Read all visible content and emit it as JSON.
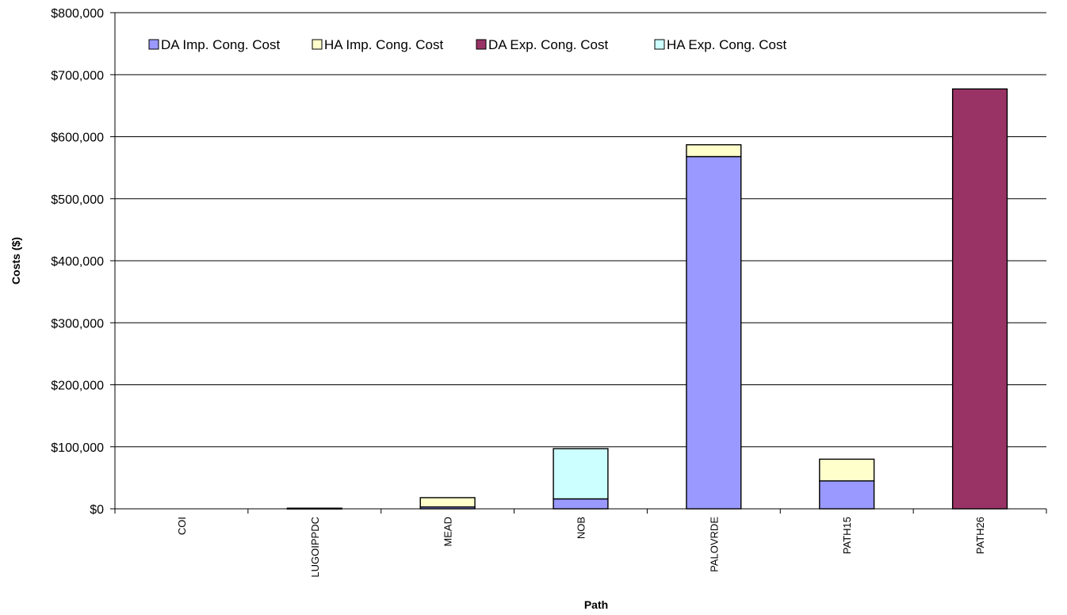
{
  "chart_data": {
    "type": "bar",
    "stacked": true,
    "categories": [
      "COI",
      "LUGOIPPDC",
      "MEAD",
      "NOB",
      "PALOVRDE",
      "PATH15",
      "PATH26"
    ],
    "series": [
      {
        "name": "DA Imp. Cong. Cost",
        "color": "#9999ff",
        "values": [
          0,
          0,
          3000,
          16000,
          568000,
          45000,
          0
        ]
      },
      {
        "name": "HA Imp. Cong. Cost",
        "color": "#ffffcc",
        "values": [
          0,
          1000,
          15000,
          0,
          19000,
          35000,
          0
        ]
      },
      {
        "name": "DA Exp. Cong. Cost",
        "color": "#993366",
        "values": [
          0,
          0,
          0,
          0,
          0,
          0,
          677000
        ]
      },
      {
        "name": "HA Exp. Cong. Cost",
        "color": "#ccffff",
        "values": [
          0,
          0,
          0,
          81000,
          0,
          0,
          0
        ]
      }
    ],
    "xlabel": "Path",
    "ylabel": "Costs ($)",
    "ylim": [
      0,
      800000
    ],
    "yticks": [
      0,
      100000,
      200000,
      300000,
      400000,
      500000,
      600000,
      700000,
      800000
    ],
    "ytick_labels": [
      "$0",
      "$100,000",
      "$200,000",
      "$300,000",
      "$400,000",
      "$500,000",
      "$600,000",
      "$700,000",
      "$800,000"
    ],
    "grid": true,
    "legend_position": "top"
  }
}
